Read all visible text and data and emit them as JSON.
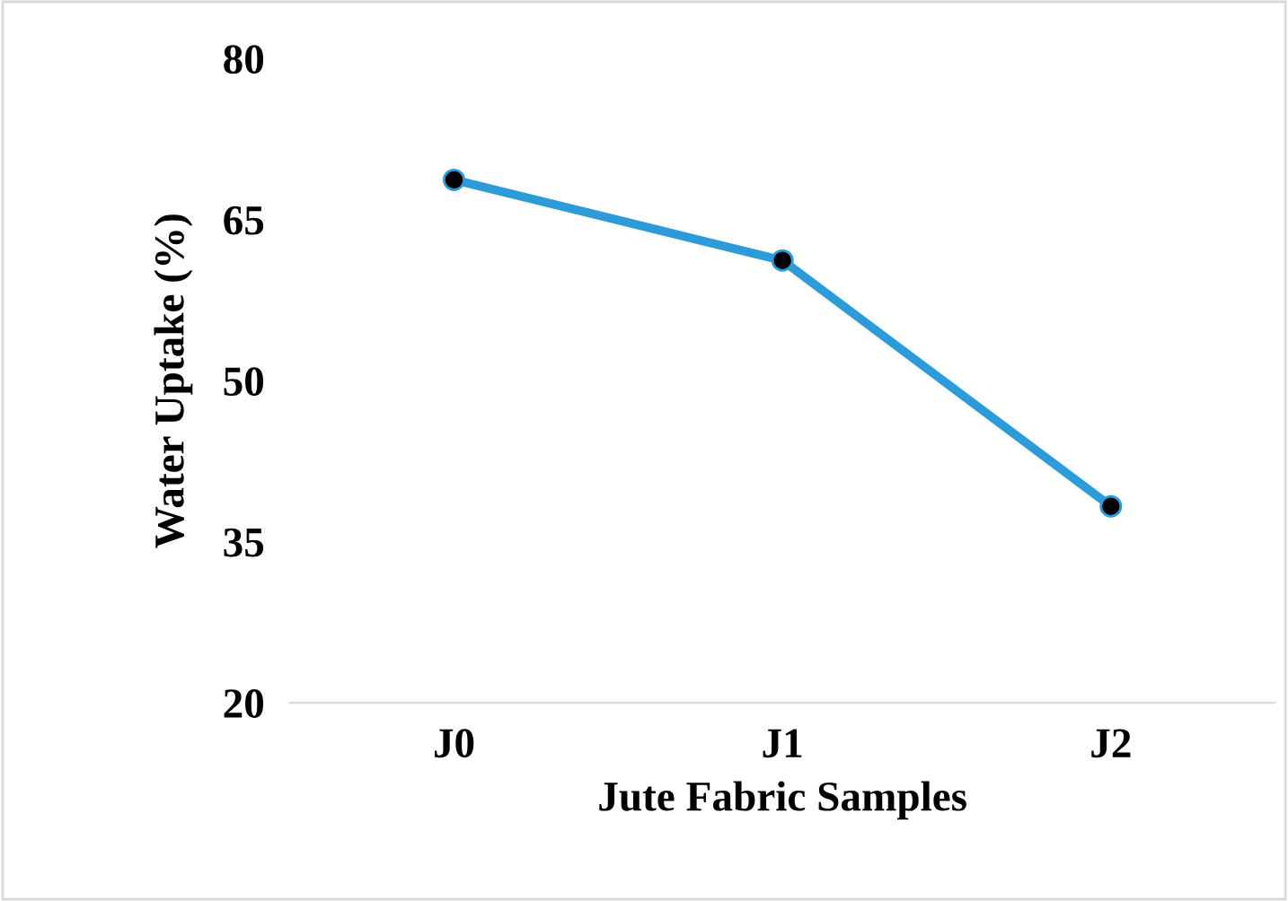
{
  "chart_data": {
    "type": "line",
    "xlabel": "Jute Fabric Samples",
    "ylabel": "Water Uptake (%)",
    "categories": [
      "J0",
      "J1",
      "J2"
    ],
    "series": [
      {
        "color": "#2e9bd9",
        "values": [
          68.7,
          61.2,
          38.3
        ]
      }
    ],
    "ylim": [
      20,
      80
    ],
    "yticks": [
      20,
      35,
      50,
      65,
      80
    ],
    "grid": false,
    "legend": false,
    "marker": "circle",
    "line_style": "solid"
  }
}
